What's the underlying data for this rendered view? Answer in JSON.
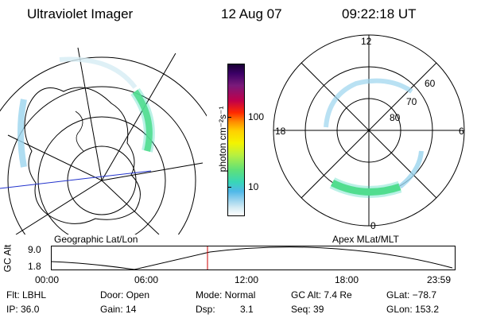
{
  "header": {
    "instrument": "Ultraviolet Imager",
    "date": "12 Aug 07",
    "time": "09:22:18 UT"
  },
  "colorbar": {
    "unit_label": "photon cm⁻²s⁻¹",
    "tick_100": "100",
    "tick_10": "10",
    "scale": "log",
    "colors": [
      "#1a0033",
      "#3b0066",
      "#7a1a7a",
      "#c0004a",
      "#ff2a00",
      "#ff8c00",
      "#ffd000",
      "#f4f400",
      "#b8f040",
      "#5ee07a",
      "#38d6b8",
      "#4fb8e8",
      "#9bd4ee",
      "#d6ecf4",
      "#ffffff"
    ]
  },
  "geo_panel": {
    "label": "Geographic Lat/Lon"
  },
  "apex_panel": {
    "label": "Apex MLat/MLT",
    "mlt_top": "12",
    "mlt_bottom": "0",
    "mlt_left": "18",
    "mlt_right": "6",
    "lat_60": "60",
    "lat_70": "70",
    "lat_80": "80"
  },
  "orbit_plot": {
    "ylabel": "GC Alt",
    "ytick_top": "9.0",
    "ytick_bottom": "1.8",
    "xticks": [
      "00:00",
      "06:00",
      "12:00",
      "18:00",
      "23:59"
    ],
    "marker_color": "#cc0000"
  },
  "info": {
    "filter": "Flt: LBHL",
    "ip": "IP: 36.0",
    "door": "Door: Open",
    "gain": "Gain: 14",
    "mode": "Mode: Normal",
    "dsp_label": "Dsp:",
    "dsp_value": "3.1",
    "gc_alt": "GC Alt: 7.4 Re",
    "seq": "Seq: 39",
    "glat": "GLat: −78.7",
    "glon": "GLon: 153.2"
  }
}
